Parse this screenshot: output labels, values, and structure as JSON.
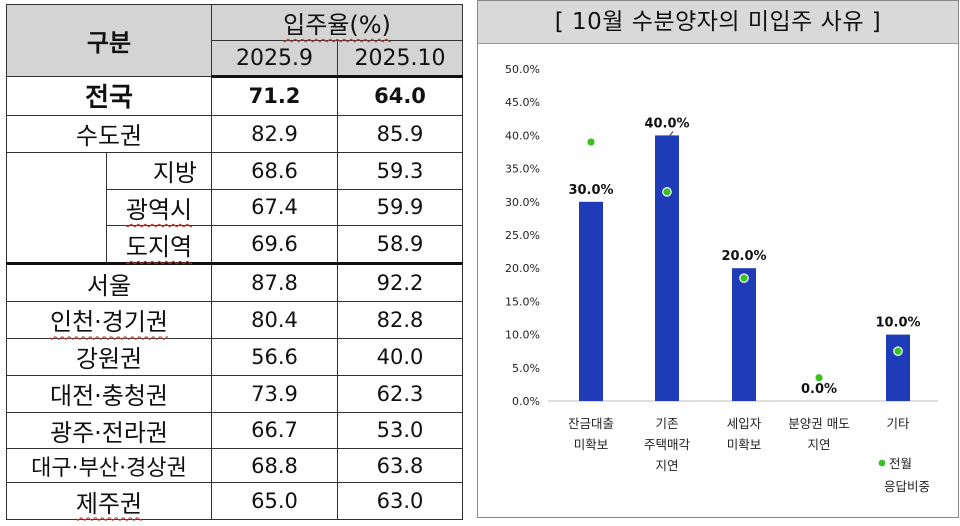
{
  "table": {
    "header_gubun": "구분",
    "header_rate": "입주율(%)",
    "periods": [
      "2025.9",
      "2025.10"
    ],
    "rows": [
      {
        "region": "전국",
        "v1": "71.2",
        "v2": "64.0"
      },
      {
        "region": "수도권",
        "v1": "82.9",
        "v2": "85.9"
      },
      {
        "region": "지방",
        "v1": "68.6",
        "v2": "59.3"
      },
      {
        "region": "광역시",
        "v1": "67.4",
        "v2": "59.9"
      },
      {
        "region": "도지역",
        "v1": "69.6",
        "v2": "58.9"
      },
      {
        "region": "서울",
        "v1": "87.8",
        "v2": "92.2"
      },
      {
        "region": "인천·경기권",
        "v1": "80.4",
        "v2": "82.8"
      },
      {
        "region": "강원권",
        "v1": "56.6",
        "v2": "40.0"
      },
      {
        "region": "대전·충청권",
        "v1": "73.9",
        "v2": "62.3"
      },
      {
        "region": "광주·전라권",
        "v1": "66.7",
        "v2": "53.0"
      },
      {
        "region": "대구·부산·경상권",
        "v1": "68.8",
        "v2": "63.8"
      },
      {
        "region": "제주권",
        "v1": "65.0",
        "v2": "63.0"
      }
    ]
  },
  "chart_data": {
    "type": "bar",
    "title": "[ 10월 수분양자의 미입주 사유 ]",
    "categories": [
      [
        "잔금대출",
        "미확보"
      ],
      [
        "기존",
        "주택매각",
        "지연"
      ],
      [
        "세입자",
        "미확보"
      ],
      [
        "분양권 매도",
        "지연"
      ],
      [
        "기타"
      ]
    ],
    "series": [
      {
        "values": [
          30.0,
          40.0,
          20.0,
          0.0,
          10.0
        ],
        "color": "#1f3cb8"
      },
      {
        "name": "전월 응답비중",
        "values": [
          39.0,
          31.5,
          18.5,
          3.5,
          7.5
        ],
        "color": "#37c21f",
        "marker": "dot"
      }
    ],
    "data_labels": [
      "30.0%",
      "40.0%",
      "20.0%",
      "0.0%",
      "10.0%"
    ],
    "yticks": [
      "50.0%",
      "45.0%",
      "40.0%",
      "35.0%",
      "30.0%",
      "25.0%",
      "20.0%",
      "15.0%",
      "10.0%",
      "5.0%",
      "0.0%"
    ],
    "ylim": [
      0,
      50
    ],
    "legend": {
      "line1": "전월",
      "line2": "응답비중",
      "position": "bottom-right"
    },
    "grid": false
  }
}
